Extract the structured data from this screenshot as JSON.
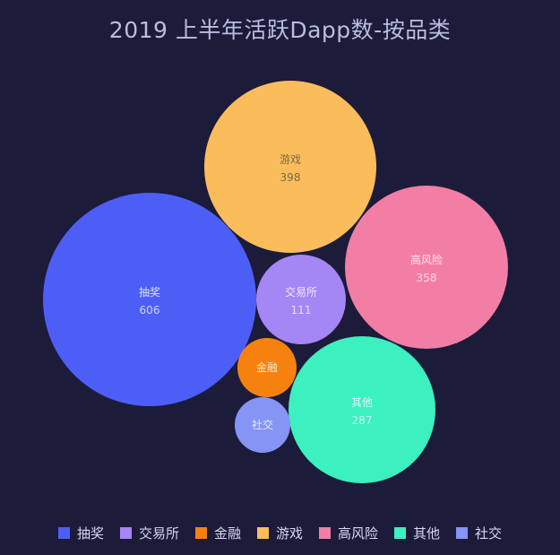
{
  "title": "2019 上半年活跃Dapp数-按品类",
  "chart_data": {
    "type": "bubble",
    "title": "2019 上半年活跃Dapp数-按品类",
    "legend_position": "bottom",
    "grid": false,
    "series": [
      {
        "name": "抽奖",
        "value": 606,
        "value_label": "606",
        "color": "#4d5ef7"
      },
      {
        "name": "交易所",
        "value": 111,
        "value_label": "111",
        "color": "#a586f5"
      },
      {
        "name": "金融",
        "value": 60,
        "value_label": "",
        "color": "#f5820e"
      },
      {
        "name": "游戏",
        "value": 398,
        "value_label": "398",
        "color": "#fbbd5b"
      },
      {
        "name": "高风险",
        "value": 358,
        "value_label": "358",
        "color": "#f27ea6"
      },
      {
        "name": "其他",
        "value": 287,
        "value_label": "287",
        "color": "#3cf0c0"
      },
      {
        "name": "社交",
        "value": 50,
        "value_label": "",
        "color": "#8594f5"
      }
    ]
  },
  "legend": {
    "items": [
      {
        "label": "抽奖",
        "color": "#4d5ef7"
      },
      {
        "label": "交易所",
        "color": "#a586f5"
      },
      {
        "label": "金融",
        "color": "#f5820e"
      },
      {
        "label": "游戏",
        "color": "#fbbd5b"
      },
      {
        "label": "高风险",
        "color": "#f27ea6"
      },
      {
        "label": "其他",
        "color": "#3cf0c0"
      },
      {
        "label": "社交",
        "color": "#8594f5"
      }
    ]
  }
}
